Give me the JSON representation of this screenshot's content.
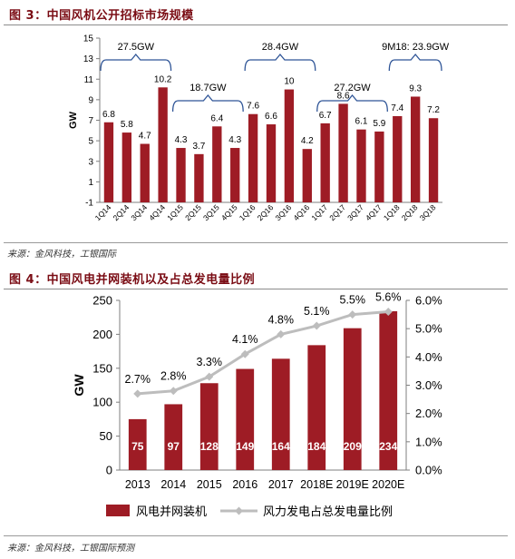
{
  "chart_data": [
    {
      "type": "bar",
      "title": "图 3：中国风机公开招标市场规模",
      "ylabel": "GW",
      "ylim": [
        -1,
        15
      ],
      "yticks": [
        -1,
        1,
        3,
        5,
        7,
        9,
        11,
        13,
        15
      ],
      "categories": [
        "1Q14",
        "2Q14",
        "3Q14",
        "4Q14",
        "1Q15",
        "2Q15",
        "3Q15",
        "4Q15",
        "1Q16",
        "2Q16",
        "3Q16",
        "4Q16",
        "1Q17",
        "2Q17",
        "3Q17",
        "4Q17",
        "1Q18",
        "2Q18",
        "3Q18"
      ],
      "values": [
        6.8,
        5.8,
        4.7,
        10.2,
        4.3,
        3.7,
        6.4,
        4.3,
        7.6,
        6.6,
        10,
        4.2,
        6.7,
        8.6,
        6.1,
        5.9,
        7.4,
        9.3,
        7.2
      ],
      "bar_color": "#9e1c25",
      "annotations": [
        {
          "label": "27.5GW",
          "from": 0,
          "to": 3,
          "position": "top"
        },
        {
          "label": "18.7GW",
          "from": 4,
          "to": 7,
          "position": "middle"
        },
        {
          "label": "28.4GW",
          "from": 8,
          "to": 11,
          "position": "top"
        },
        {
          "label": "27.2GW",
          "from": 12,
          "to": 15,
          "position": "middle"
        },
        {
          "label": "9M18: 23.9GW",
          "from": 16,
          "to": 18,
          "position": "top"
        }
      ],
      "source": "来源：金风科技，工银国际"
    },
    {
      "type": "bar+line",
      "title": "图 4：中国风电并网装机以及占总发电量比例",
      "categories": [
        "2013",
        "2014",
        "2015",
        "2016",
        "2017",
        "2018E",
        "2019E",
        "2020E"
      ],
      "series": [
        {
          "name": "风电并网装机",
          "type": "bar",
          "axis": "left",
          "color": "#9e1c25",
          "values": [
            75,
            97,
            128,
            149,
            164,
            184,
            209,
            234
          ]
        },
        {
          "name": "风力发电占总发电量比例",
          "type": "line",
          "axis": "right",
          "color": "#bdbdbd",
          "values": [
            2.7,
            2.8,
            3.3,
            4.1,
            4.8,
            5.1,
            5.5,
            5.6
          ],
          "labels": [
            "2.7%",
            "2.8%",
            "3.3%",
            "4.1%",
            "4.8%",
            "5.1%",
            "5.5%",
            "5.6%"
          ]
        }
      ],
      "ylabel_left": "GW",
      "ylim_left": [
        0,
        250
      ],
      "yticks_left": [
        0,
        50,
        100,
        150,
        200,
        250
      ],
      "ylim_right": [
        0,
        6
      ],
      "yticks_right": [
        "0.0%",
        "1.0%",
        "2.0%",
        "3.0%",
        "4.0%",
        "5.0%",
        "6.0%"
      ],
      "legend_position": "bottom",
      "source": "来源：金风科技，工银国际预测"
    }
  ]
}
